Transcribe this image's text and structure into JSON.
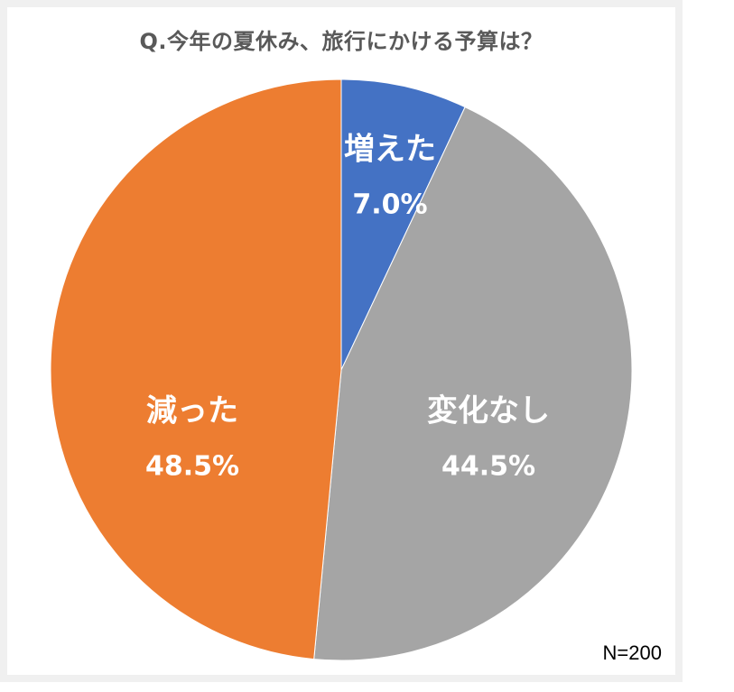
{
  "chart_data": {
    "type": "pie",
    "title": "Q.今年の夏休み、旅行にかける予算は？",
    "categories": [
      "増えた",
      "変化なし",
      "減った"
    ],
    "values": [
      7.0,
      44.5,
      48.5
    ],
    "labels": [
      "7.0%",
      "44.5%",
      "48.5%"
    ],
    "colors": [
      "#4472C4",
      "#A5A5A5",
      "#ED7D31"
    ],
    "start_angle": "12 o'clock",
    "direction": "clockwise",
    "legend": "none (data labels inside slices)",
    "annotation": "N=200"
  },
  "title": "Q.今年の夏休み、旅行にかける予算は？",
  "slices": [
    {
      "label": "増えた",
      "pct": "7.0%"
    },
    {
      "label": "変化なし",
      "pct": "44.5%"
    },
    {
      "label": "減った",
      "pct": "48.5%"
    }
  ],
  "sample_size": "N=200"
}
